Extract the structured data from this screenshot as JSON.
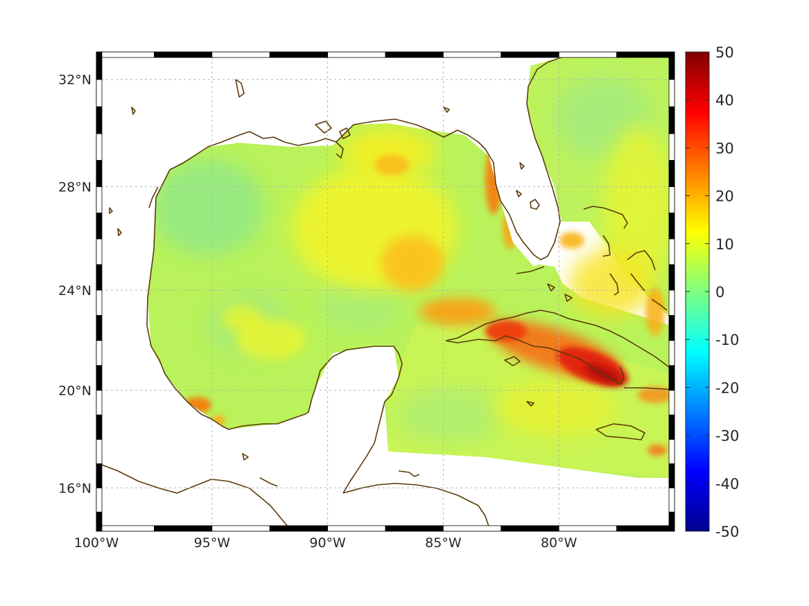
{
  "map": {
    "projection": "mercator",
    "lon_range": [
      -100,
      -75
    ],
    "lat_range": [
      14.2,
      33.0
    ],
    "grid": true,
    "lon_ticks": [
      {
        "value": -100,
        "label": "100°W"
      },
      {
        "value": -95,
        "label": "95°W"
      },
      {
        "value": -90,
        "label": "90°W"
      },
      {
        "value": -85,
        "label": "85°W"
      },
      {
        "value": -80,
        "label": "80°W"
      }
    ],
    "lat_ticks": [
      {
        "value": 32,
        "label": "32°N"
      },
      {
        "value": 28,
        "label": "28°N"
      },
      {
        "value": 24,
        "label": "24°N"
      },
      {
        "value": 20,
        "label": "20°N"
      },
      {
        "value": 16,
        "label": "16°N"
      }
    ],
    "coastline_color": "#5a3a0a",
    "field_note_values": {
      "background_range": [
        0,
        14
      ],
      "hotspots": [
        {
          "area": "south-east Cuba",
          "lon": -78.5,
          "lat": 20.6,
          "value": 48
        },
        {
          "area": "north coast of Cuba",
          "lon": -83.5,
          "lat": 22.9,
          "value": 25
        },
        {
          "area": "central Gulf",
          "lon": -86.5,
          "lat": 25.0,
          "value": 18
        },
        {
          "area": "Florida west coast",
          "lon": -82.7,
          "lat": 27.8,
          "value": 26
        },
        {
          "area": "Bay of Campeche",
          "lon": -95.7,
          "lat": 19.0,
          "value": 24
        }
      ]
    }
  },
  "colorbar": {
    "min": -50,
    "max": 50,
    "colormap": "jet",
    "ticks": [
      {
        "value": 50,
        "label": "50"
      },
      {
        "value": 40,
        "label": "40"
      },
      {
        "value": 30,
        "label": "30"
      },
      {
        "value": 20,
        "label": "20"
      },
      {
        "value": 10,
        "label": "10"
      },
      {
        "value": 0,
        "label": "0"
      },
      {
        "value": -10,
        "label": "-10"
      },
      {
        "value": -20,
        "label": "-20"
      },
      {
        "value": -30,
        "label": "-30"
      },
      {
        "value": -40,
        "label": "-40"
      },
      {
        "value": -50,
        "label": "-50"
      }
    ]
  }
}
